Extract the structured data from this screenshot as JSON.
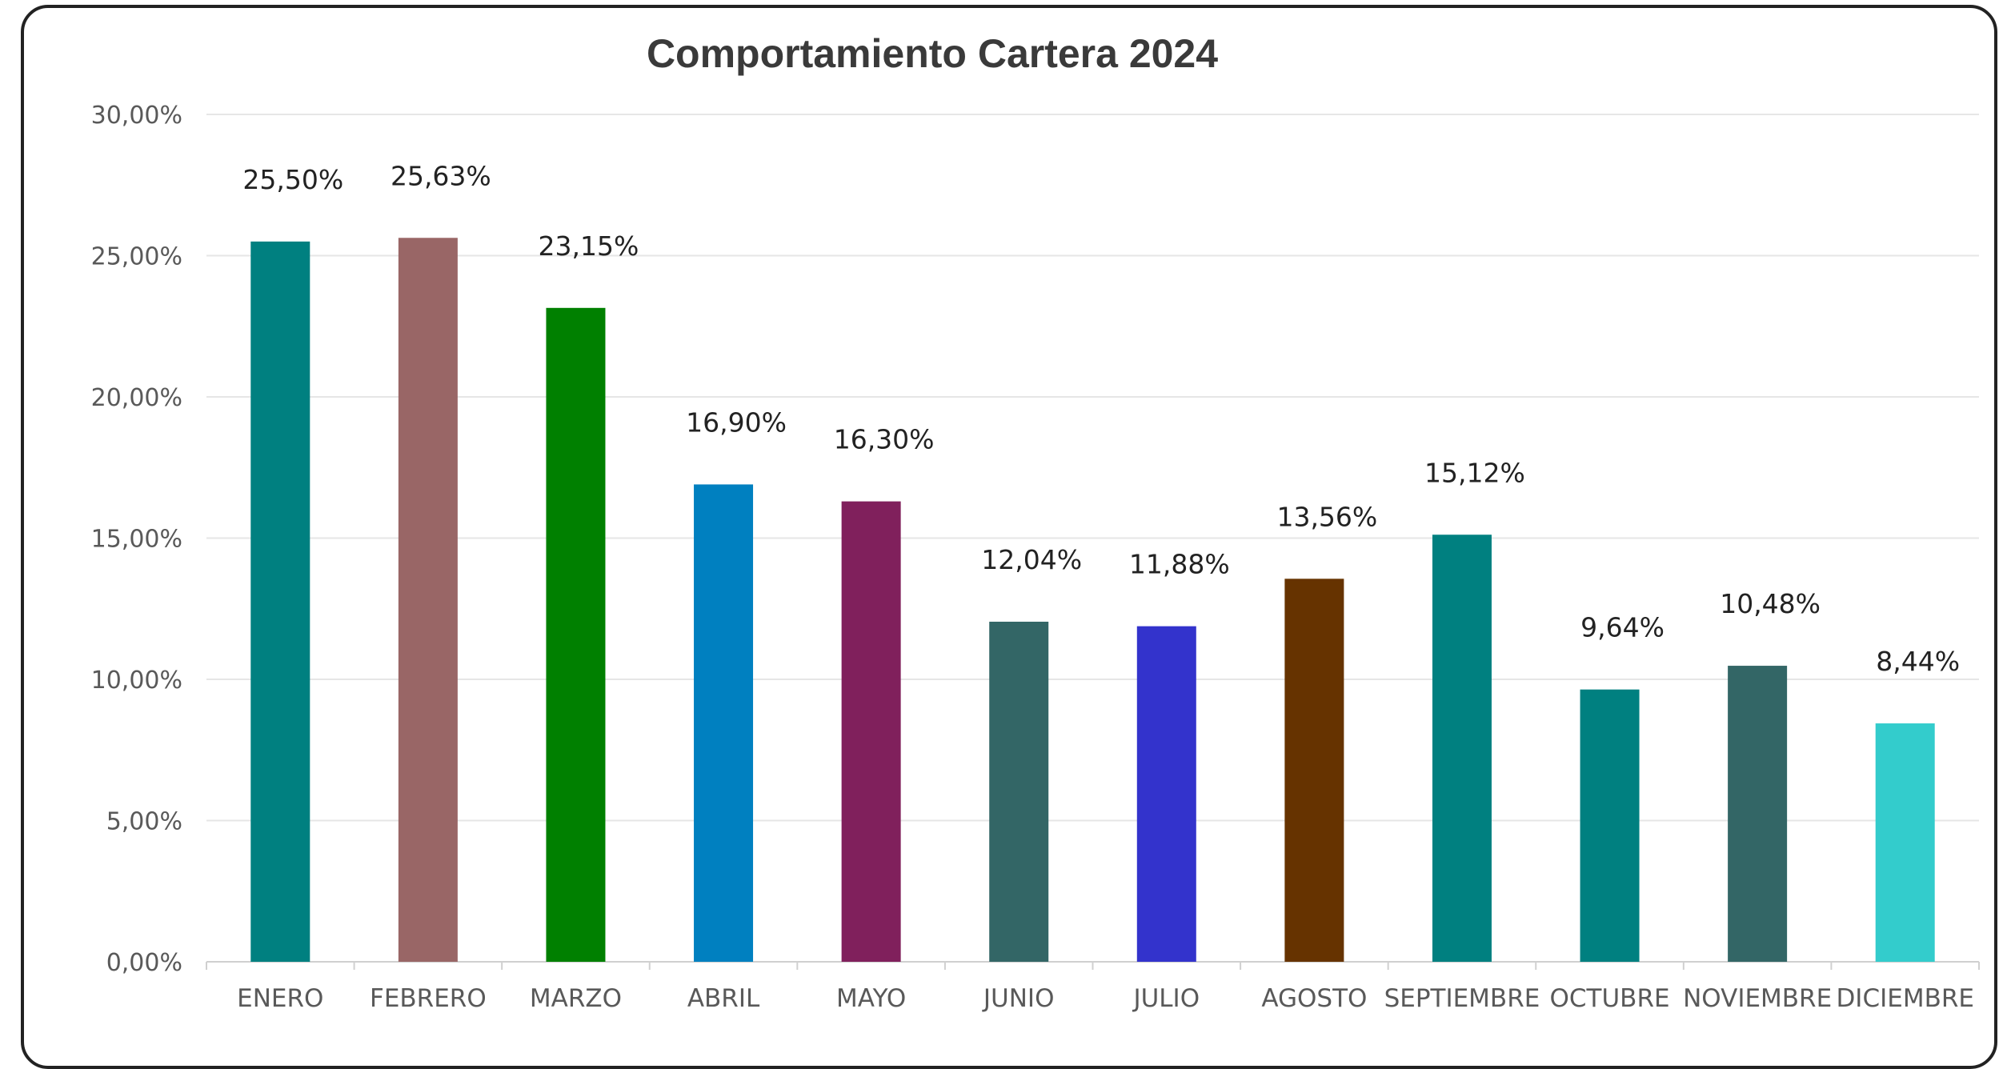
{
  "chart_data": {
    "type": "bar",
    "title": "Comportamiento Cartera 2024",
    "xlabel": "",
    "ylabel": "",
    "ylim": [
      0,
      30
    ],
    "yticks": [
      "0,00%",
      "5,00%",
      "10,00%",
      "15,00%",
      "20,00%",
      "25,00%",
      "30,00%"
    ],
    "grid": true,
    "legend": "none",
    "categories": [
      "ENERO",
      "FEBRERO",
      "MARZO",
      "ABRIL",
      "MAYO",
      "JUNIO",
      "JULIO",
      "AGOSTO",
      "SEPTIEMBRE",
      "OCTUBRE",
      "NOVIEMBRE",
      "DICIEMBRE"
    ],
    "values": [
      25.5,
      25.63,
      23.15,
      16.9,
      16.3,
      12.04,
      11.88,
      13.56,
      15.12,
      9.64,
      10.48,
      8.44
    ],
    "data_labels": [
      "25,50%",
      "25,63%",
      "23,15%",
      "16,90%",
      "16,30%",
      "12,04%",
      "11,88%",
      "13,56%",
      "15,12%",
      "9,64%",
      "10,48%",
      "8,44%"
    ],
    "colors": [
      "#008080",
      "#996666",
      "#008000",
      "#0080c0",
      "#80205c",
      "#336666",
      "#3333cc",
      "#663300",
      "#008080",
      "#008080",
      "#336666",
      "#33cccc"
    ]
  }
}
